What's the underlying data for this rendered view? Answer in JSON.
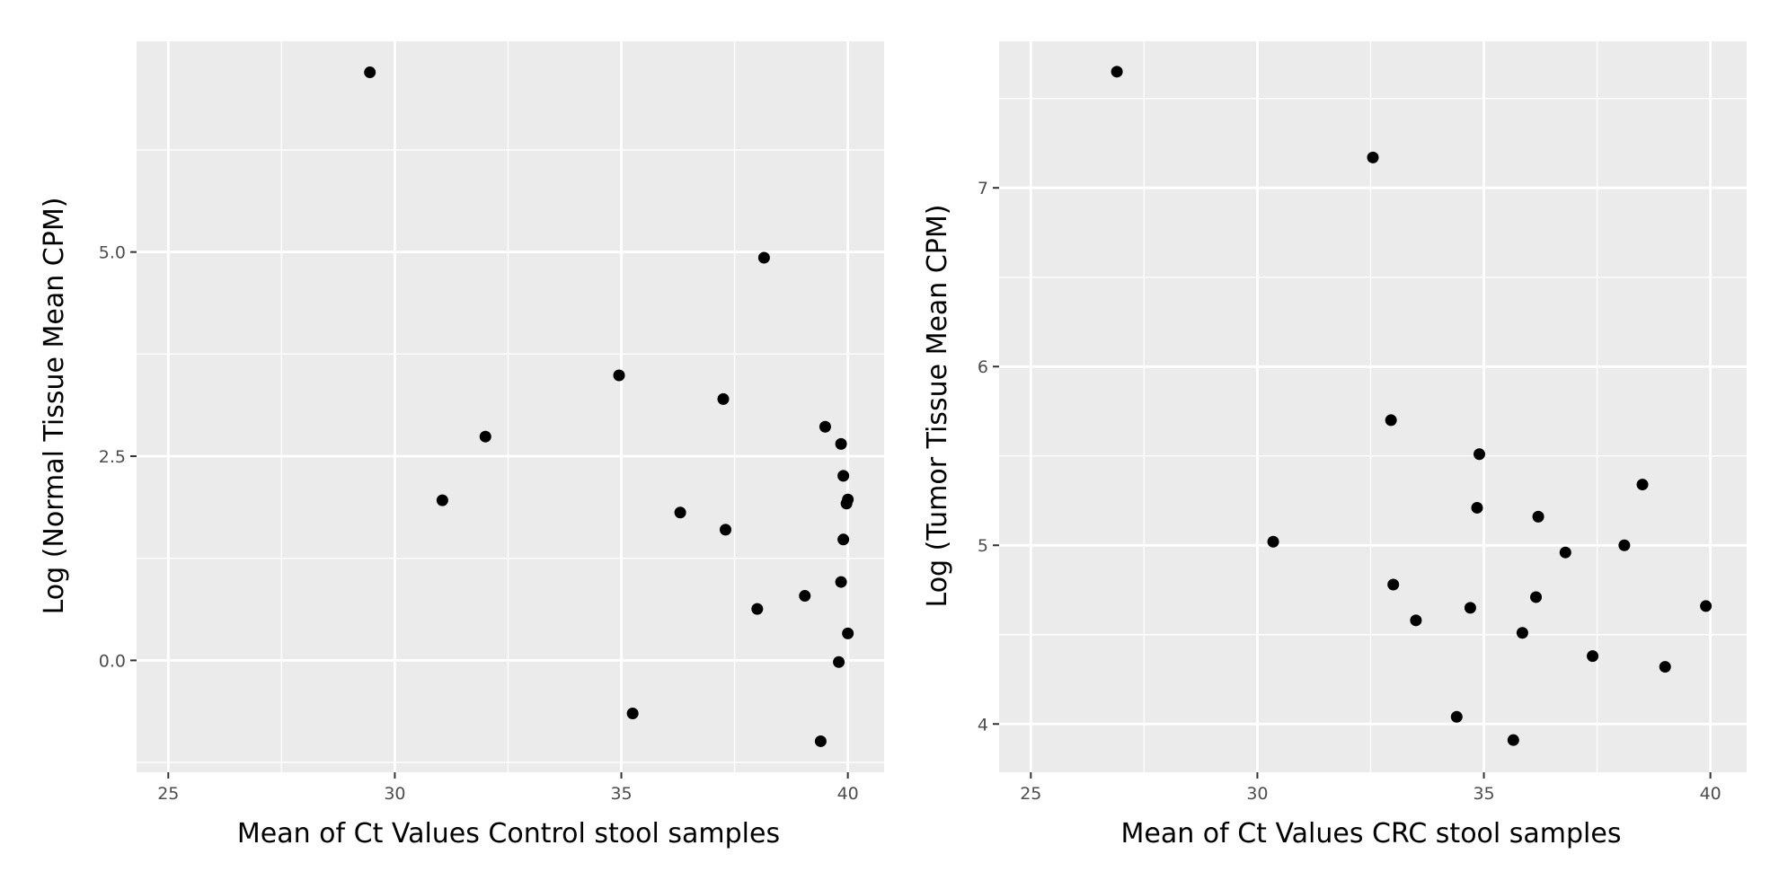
{
  "chart_data": [
    {
      "type": "scatter",
      "xlabel": "Mean of Ct Values Control stool samples",
      "ylabel": "Log (Normal Tissue Mean CPM)",
      "xlim": [
        24.3,
        40.8
      ],
      "ylim": [
        -1.37,
        7.58
      ],
      "x_ticks": [
        25,
        30,
        35,
        40
      ],
      "x_tick_labels": [
        "25",
        "30",
        "35",
        "40"
      ],
      "y_ticks": [
        0,
        2.5,
        5
      ],
      "y_tick_labels": [
        "0.0",
        "2.5",
        "5.0"
      ],
      "grid": true,
      "background": "#ebebeb",
      "point_color": "#000000",
      "points": [
        {
          "x": 29.45,
          "y": 7.2
        },
        {
          "x": 38.15,
          "y": 4.93
        },
        {
          "x": 34.95,
          "y": 3.49
        },
        {
          "x": 37.25,
          "y": 3.2
        },
        {
          "x": 32.0,
          "y": 2.74
        },
        {
          "x": 39.5,
          "y": 2.86
        },
        {
          "x": 39.85,
          "y": 2.65
        },
        {
          "x": 39.9,
          "y": 2.26
        },
        {
          "x": 40.0,
          "y": 1.97
        },
        {
          "x": 39.97,
          "y": 1.92
        },
        {
          "x": 31.05,
          "y": 1.96
        },
        {
          "x": 36.3,
          "y": 1.81
        },
        {
          "x": 37.3,
          "y": 1.6
        },
        {
          "x": 39.9,
          "y": 1.48
        },
        {
          "x": 39.85,
          "y": 0.96
        },
        {
          "x": 39.05,
          "y": 0.79
        },
        {
          "x": 38.0,
          "y": 0.63
        },
        {
          "x": 40.0,
          "y": 0.33
        },
        {
          "x": 39.8,
          "y": -0.02
        },
        {
          "x": 35.25,
          "y": -0.65
        },
        {
          "x": 39.4,
          "y": -0.99
        }
      ]
    },
    {
      "type": "scatter",
      "xlabel": "Mean of Ct Values CRC stool samples",
      "ylabel": "Log (Tumor Tissue Mean CPM)",
      "xlim": [
        24.3,
        40.8
      ],
      "ylim": [
        3.73,
        7.82
      ],
      "x_ticks": [
        25,
        30,
        35,
        40
      ],
      "x_tick_labels": [
        "25",
        "30",
        "35",
        "40"
      ],
      "y_ticks": [
        4,
        5,
        6,
        7
      ],
      "y_tick_labels": [
        "4",
        "5",
        "6",
        "7"
      ],
      "grid": true,
      "background": "#ebebeb",
      "point_color": "#000000",
      "points": [
        {
          "x": 26.9,
          "y": 7.65
        },
        {
          "x": 32.55,
          "y": 7.17
        },
        {
          "x": 32.95,
          "y": 5.7
        },
        {
          "x": 34.9,
          "y": 5.51
        },
        {
          "x": 38.5,
          "y": 5.34
        },
        {
          "x": 34.85,
          "y": 5.21
        },
        {
          "x": 36.2,
          "y": 5.16
        },
        {
          "x": 30.35,
          "y": 5.02
        },
        {
          "x": 38.1,
          "y": 5.0
        },
        {
          "x": 36.8,
          "y": 4.96
        },
        {
          "x": 33.0,
          "y": 4.78
        },
        {
          "x": 36.15,
          "y": 4.71
        },
        {
          "x": 34.7,
          "y": 4.65
        },
        {
          "x": 39.9,
          "y": 4.66
        },
        {
          "x": 33.5,
          "y": 4.58
        },
        {
          "x": 35.85,
          "y": 4.51
        },
        {
          "x": 37.4,
          "y": 4.38
        },
        {
          "x": 39.0,
          "y": 4.32
        },
        {
          "x": 34.4,
          "y": 4.04
        },
        {
          "x": 35.65,
          "y": 3.91
        }
      ]
    }
  ]
}
